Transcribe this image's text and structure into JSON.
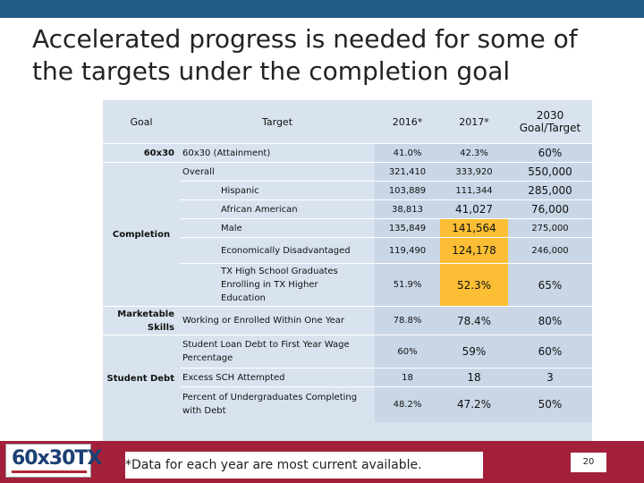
{
  "title": {
    "line1": "Accelerated progress is needed for some of",
    "line2": "the targets under the completion goal"
  },
  "table": {
    "headers": {
      "goal": "Goal",
      "target": "Target",
      "y2016": "2016*",
      "y2017": "2017*",
      "y2030": "2030 Goal/Target"
    },
    "goals": {
      "g1": "60x30",
      "g2": "Completion",
      "g3": "Marketable Skills",
      "g4": "Student Debt"
    },
    "rows": [
      {
        "target": "60x30 (Attainment)",
        "v2016": "41.0%",
        "v2017": "42.3%",
        "v2030": "60%"
      },
      {
        "target": "Overall",
        "v2016": "321,410",
        "v2017": "333,920",
        "v2030": "550,000"
      },
      {
        "target": "Hispanic",
        "v2016": "103,889",
        "v2017": "111,344",
        "v2030": "285,000"
      },
      {
        "target": "African American",
        "v2016": "38,813",
        "v2017": "41,027",
        "v2030": "76,000"
      },
      {
        "target": "Male",
        "v2016": "135,849",
        "v2017": "141,564",
        "v2030": "275,000"
      },
      {
        "target": "Economically Disadvantaged",
        "v2016": "119,490",
        "v2017": "124,178",
        "v2030": "246,000"
      },
      {
        "target": "TX High School Graduates Enrolling in TX Higher Education",
        "v2016": "51.9%",
        "v2017": "52.3%",
        "v2030": "65%"
      },
      {
        "target": "Working or Enrolled Within One Year",
        "v2016": "78.8%",
        "v2017": "78.4%",
        "v2030": "80%"
      },
      {
        "target": "Student Loan Debt to First Year Wage Percentage",
        "v2016": "60%",
        "v2017": "59%",
        "v2030": "60%"
      },
      {
        "target": "Excess SCH Attempted",
        "v2016": "18",
        "v2017": "18",
        "v2030": "3"
      },
      {
        "target": "Percent of Undergraduates Completing with Debt",
        "v2016": "48.2%",
        "v2017": "47.2%",
        "v2030": "50%"
      }
    ]
  },
  "footnote": "*Data for each year are most current available.",
  "page_number": "20",
  "logo_text": "60x30TX",
  "colors": {
    "top_bar": "#1f5c84",
    "bottom_bar": "#a3203b",
    "highlight": "#fbbe34",
    "table_bg": "#d8e3ef"
  }
}
